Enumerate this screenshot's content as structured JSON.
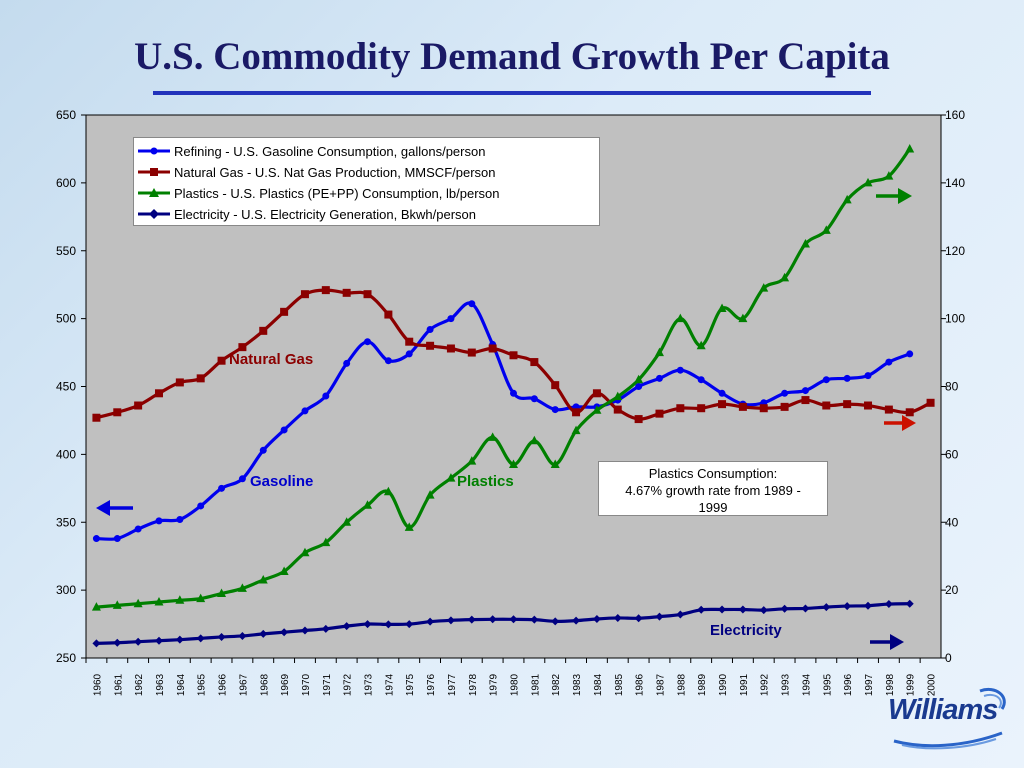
{
  "page": {
    "title": "U.S. Commodity Demand Growth Per Capita"
  },
  "legend": {
    "items": [
      {
        "label": "Refining - U.S. Gasoline Consumption, gallons/person",
        "color": "#0000ee",
        "marker": "circle"
      },
      {
        "label": "Natural Gas - U.S. Nat Gas Production, MMSCF/person",
        "color": "#8b0000",
        "marker": "square"
      },
      {
        "label": "Plastics - U.S. Plastics (PE+PP) Consumption, lb/person",
        "color": "#008000",
        "marker": "triangle"
      },
      {
        "label": "Electricity - U.S. Electricity Generation, Bkwh/person",
        "color": "#000080",
        "marker": "diamond"
      }
    ]
  },
  "annotation": {
    "line1": "Plastics Consumption:",
    "line2": "4.67% growth rate from 1989 -",
    "line3": "1999"
  },
  "series_labels": {
    "natural_gas": "Natural Gas",
    "gasoline": "Gasoline",
    "plastics": "Plastics",
    "electricity": "Electricity"
  },
  "logo": {
    "text": "Williams"
  },
  "colors": {
    "plot_bg": "#c0c0c0",
    "gasoline": "#0000ee",
    "natural_gas": "#8b0000",
    "plastics": "#008000",
    "electricity": "#000080",
    "arrow_blue": "#0000dd",
    "arrow_red": "#cc1100",
    "arrow_green": "#008000",
    "arrow_navy": "#000080"
  },
  "chart_data": {
    "type": "line",
    "title": "U.S. Commodity Demand Growth Per Capita",
    "x_categories": [
      "1960",
      "1961",
      "1962",
      "1963",
      "1964",
      "1965",
      "1966",
      "1967",
      "1968",
      "1969",
      "1970",
      "1971",
      "1972",
      "1973",
      "1974",
      "1975",
      "1976",
      "1977",
      "1978",
      "1979",
      "1980",
      "1981",
      "1982",
      "1983",
      "1984",
      "1985",
      "1986",
      "1987",
      "1988",
      "1989",
      "1990",
      "1991",
      "1992",
      "1993",
      "1994",
      "1995",
      "1996",
      "1997",
      "1998",
      "1999",
      "2000"
    ],
    "y_left": {
      "min": 250,
      "max": 650,
      "ticks": [
        250,
        300,
        350,
        400,
        450,
        500,
        550,
        600,
        650
      ]
    },
    "y_right": {
      "min": 0,
      "max": 160,
      "ticks": [
        0,
        20,
        40,
        60,
        80,
        100,
        120,
        140,
        160
      ]
    },
    "grid": false,
    "legend_position": "top-left",
    "series": [
      {
        "name": "Refining - U.S. Gasoline Consumption, gallons/person",
        "axis": "left",
        "color": "#0000ee",
        "marker": "circle",
        "x": [
          "1960",
          "1961",
          "1962",
          "1963",
          "1964",
          "1965",
          "1966",
          "1967",
          "1968",
          "1969",
          "1970",
          "1971",
          "1972",
          "1973",
          "1974",
          "1975",
          "1976",
          "1977",
          "1978",
          "1979",
          "1980",
          "1981",
          "1982",
          "1983",
          "1984",
          "1985",
          "1986",
          "1987",
          "1988",
          "1989",
          "1990",
          "1991",
          "1992",
          "1993",
          "1994",
          "1995",
          "1996",
          "1997",
          "1998",
          "1999"
        ],
        "values": [
          338,
          338,
          345,
          351,
          352,
          362,
          375,
          382,
          403,
          418,
          432,
          443,
          467,
          483,
          469,
          474,
          492,
          500,
          511,
          481,
          445,
          441,
          433,
          435,
          435,
          440,
          450,
          456,
          462,
          455,
          445,
          437,
          438,
          445,
          447,
          455,
          456,
          458,
          468,
          474
        ]
      },
      {
        "name": "Natural Gas - U.S. Nat Gas Production, MMSCF/person",
        "axis": "left",
        "color": "#8b0000",
        "marker": "square",
        "x": [
          "1960",
          "1961",
          "1962",
          "1963",
          "1964",
          "1965",
          "1966",
          "1967",
          "1968",
          "1969",
          "1970",
          "1971",
          "1972",
          "1973",
          "1974",
          "1975",
          "1976",
          "1977",
          "1978",
          "1979",
          "1980",
          "1981",
          "1982",
          "1983",
          "1984",
          "1985",
          "1986",
          "1987",
          "1988",
          "1989",
          "1990",
          "1991",
          "1992",
          "1993",
          "1994",
          "1995",
          "1996",
          "1997",
          "1998",
          "1999",
          "2000"
        ],
        "values": [
          427,
          431,
          436,
          445,
          453,
          456,
          469,
          479,
          491,
          505,
          518,
          521,
          519,
          518,
          503,
          483,
          480,
          478,
          475,
          478,
          473,
          468,
          451,
          431,
          445,
          433,
          426,
          430,
          434,
          434,
          437,
          435,
          434,
          435,
          440,
          436,
          437,
          436,
          433,
          431,
          438
        ]
      },
      {
        "name": "Plastics - U.S. Plastics (PE+PP) Consumption, lb/person",
        "axis": "right",
        "color": "#008000",
        "marker": "triangle",
        "x": [
          "1960",
          "1961",
          "1962",
          "1963",
          "1964",
          "1965",
          "1966",
          "1967",
          "1968",
          "1969",
          "1970",
          "1971",
          "1972",
          "1973",
          "1974",
          "1975",
          "1976",
          "1977",
          "1978",
          "1979",
          "1980",
          "1981",
          "1982",
          "1983",
          "1984",
          "1985",
          "1986",
          "1987",
          "1988",
          "1989",
          "1990",
          "1991",
          "1992",
          "1993",
          "1994",
          "1995",
          "1996",
          "1997",
          "1998",
          "1999"
        ],
        "values": [
          15,
          15.5,
          16,
          16.5,
          17,
          17.5,
          19,
          20.5,
          23,
          25.5,
          31,
          34,
          40,
          45,
          49,
          38.5,
          48,
          53,
          58,
          65,
          57,
          64,
          57,
          67,
          73,
          77,
          82,
          90,
          100,
          92,
          103,
          100,
          109,
          112,
          122,
          126,
          135,
          140,
          142,
          150
        ]
      },
      {
        "name": "Electricity - U.S. Electricity Generation, Bkwh/person",
        "axis": "right",
        "color": "#000080",
        "marker": "diamond",
        "x": [
          "1960",
          "1961",
          "1962",
          "1963",
          "1964",
          "1965",
          "1966",
          "1967",
          "1968",
          "1969",
          "1970",
          "1971",
          "1972",
          "1973",
          "1974",
          "1975",
          "1976",
          "1977",
          "1978",
          "1979",
          "1980",
          "1981",
          "1982",
          "1983",
          "1984",
          "1985",
          "1986",
          "1987",
          "1988",
          "1989",
          "1990",
          "1991",
          "1992",
          "1993",
          "1994",
          "1995",
          "1996",
          "1997",
          "1998",
          "1999"
        ],
        "values": [
          4.3,
          4.5,
          4.8,
          5.1,
          5.4,
          5.8,
          6.2,
          6.5,
          7.1,
          7.6,
          8.1,
          8.6,
          9.4,
          10,
          9.9,
          10,
          10.7,
          11.1,
          11.3,
          11.4,
          11.4,
          11.3,
          10.8,
          11,
          11.5,
          11.8,
          11.7,
          12.2,
          12.8,
          14.2,
          14.3,
          14.3,
          14.1,
          14.5,
          14.6,
          15,
          15.3,
          15.4,
          15.9,
          16
        ]
      }
    ]
  }
}
